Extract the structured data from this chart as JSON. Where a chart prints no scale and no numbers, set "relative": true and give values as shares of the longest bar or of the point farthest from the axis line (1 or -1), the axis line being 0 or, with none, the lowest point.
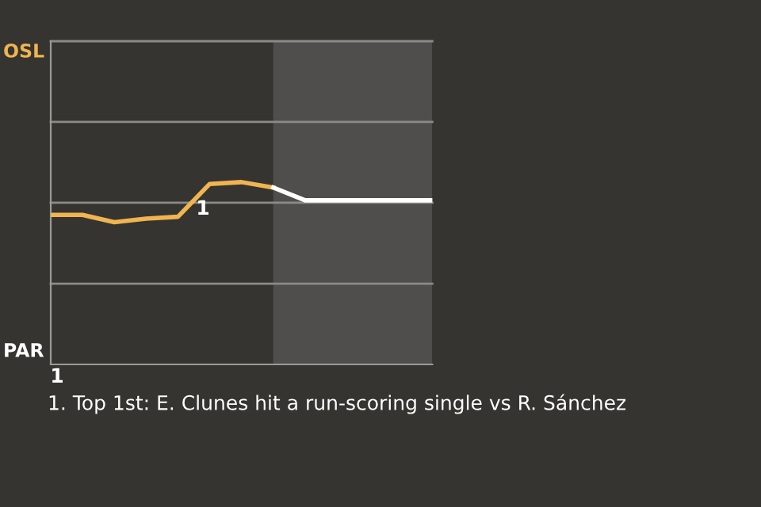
{
  "chart_data": {
    "type": "line",
    "relative": true,
    "categories": [
      null,
      null,
      null,
      null,
      null,
      null,
      null,
      null,
      null,
      null,
      null,
      null,
      null
    ],
    "series": [
      {
        "color": "#f0b450",
        "values": [
          0.82,
          0.82,
          0.78,
          0.8,
          0.81,
          0.99,
          1,
          0.97,
          null,
          null,
          null,
          null,
          null
        ]
      },
      {
        "color": "#ffffff",
        "values": [
          null,
          null,
          null,
          null,
          null,
          null,
          null,
          0.97,
          0.9,
          0.9,
          0.9,
          0.9,
          0.9
        ]
      }
    ],
    "ref_lines": [
      {
        "axis": "y",
        "value": 0.443,
        "color": "#8a8a88"
      },
      {
        "axis": "y",
        "value": 0.887,
        "color": "#8a8a88"
      },
      {
        "axis": "y",
        "value": 1.33,
        "color": "#8a8a88"
      },
      {
        "axis": "y",
        "value": 1.773,
        "color": "#8a8a88"
      }
    ],
    "annotations": [
      "OSL",
      "PAR",
      "1",
      "1",
      "1. Top 1st: E. Clunes hit a run-scoring single vs R. Sánchez"
    ]
  }
}
